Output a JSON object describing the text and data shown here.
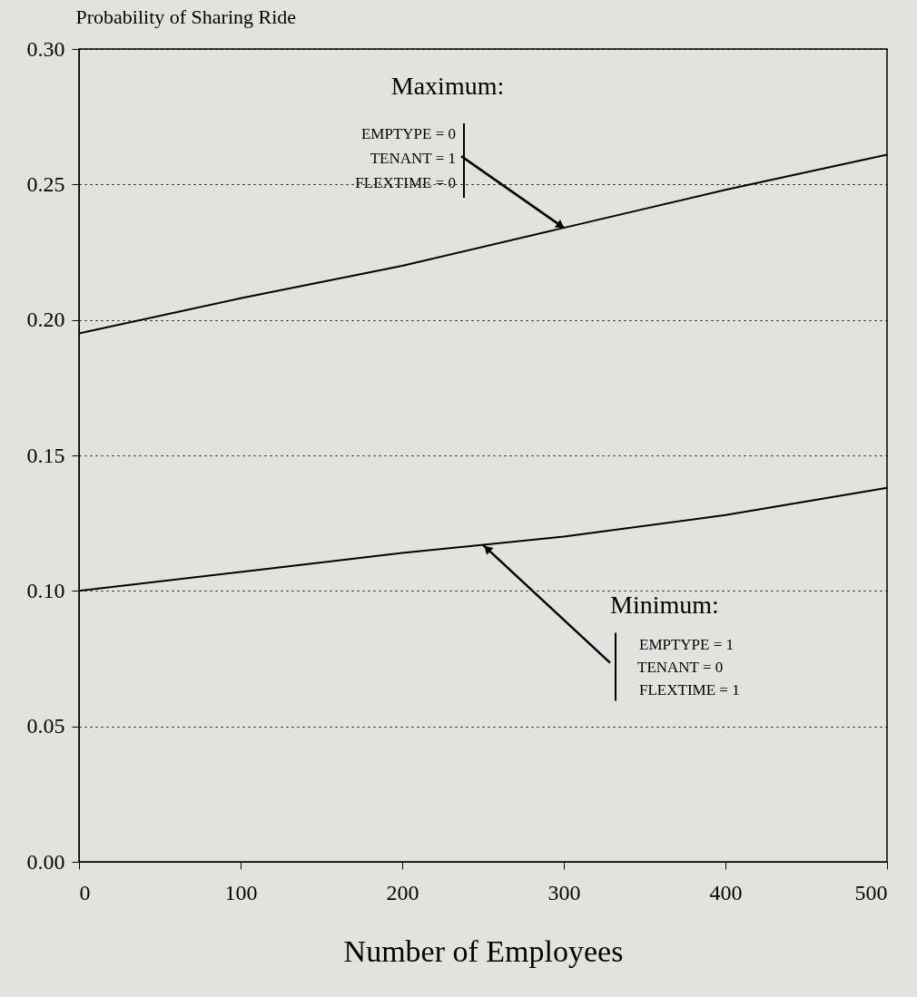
{
  "chart_data": {
    "type": "line",
    "ylabel": "Probability of Sharing Ride",
    "xlabel": "Number of Employees",
    "x": [
      0,
      100,
      200,
      300,
      400,
      500
    ],
    "series": [
      {
        "color": "#000000",
        "values": [
          0.195,
          0.208,
          0.22,
          0.234,
          0.248,
          0.261
        ]
      },
      {
        "color": "#000000",
        "values": [
          0.1,
          0.107,
          0.114,
          0.12,
          0.128,
          0.138
        ]
      }
    ],
    "xlim": [
      0,
      500
    ],
    "xticks": [
      0,
      100,
      200,
      300,
      400,
      500
    ],
    "ylim": [
      0,
      0.3
    ],
    "yticks": [
      {
        "value": 0,
        "label": "0.00"
      },
      {
        "value": 0.05,
        "label": "0.05"
      },
      {
        "value": 0.1,
        "label": "0.10"
      },
      {
        "value": 0.15,
        "label": "0.15"
      },
      {
        "value": 0.2,
        "label": "0.20"
      },
      {
        "value": 0.25,
        "label": "0.25"
      },
      {
        "value": 0.3,
        "label": "0.30"
      }
    ],
    "grid": "y",
    "line_style": "solid",
    "marker": "none",
    "annotations": [
      {
        "text": "Maximum:\nEMPTYPE = 0\nTENANT = 1\nFLEXTIME = 0",
        "x": 300,
        "y": 0.234
      },
      {
        "text": "Minimum:\nEMPTYPE = 1\nTENANT = 0\nFLEXTIME = 1",
        "x": 250,
        "y": 0.117
      }
    ]
  }
}
